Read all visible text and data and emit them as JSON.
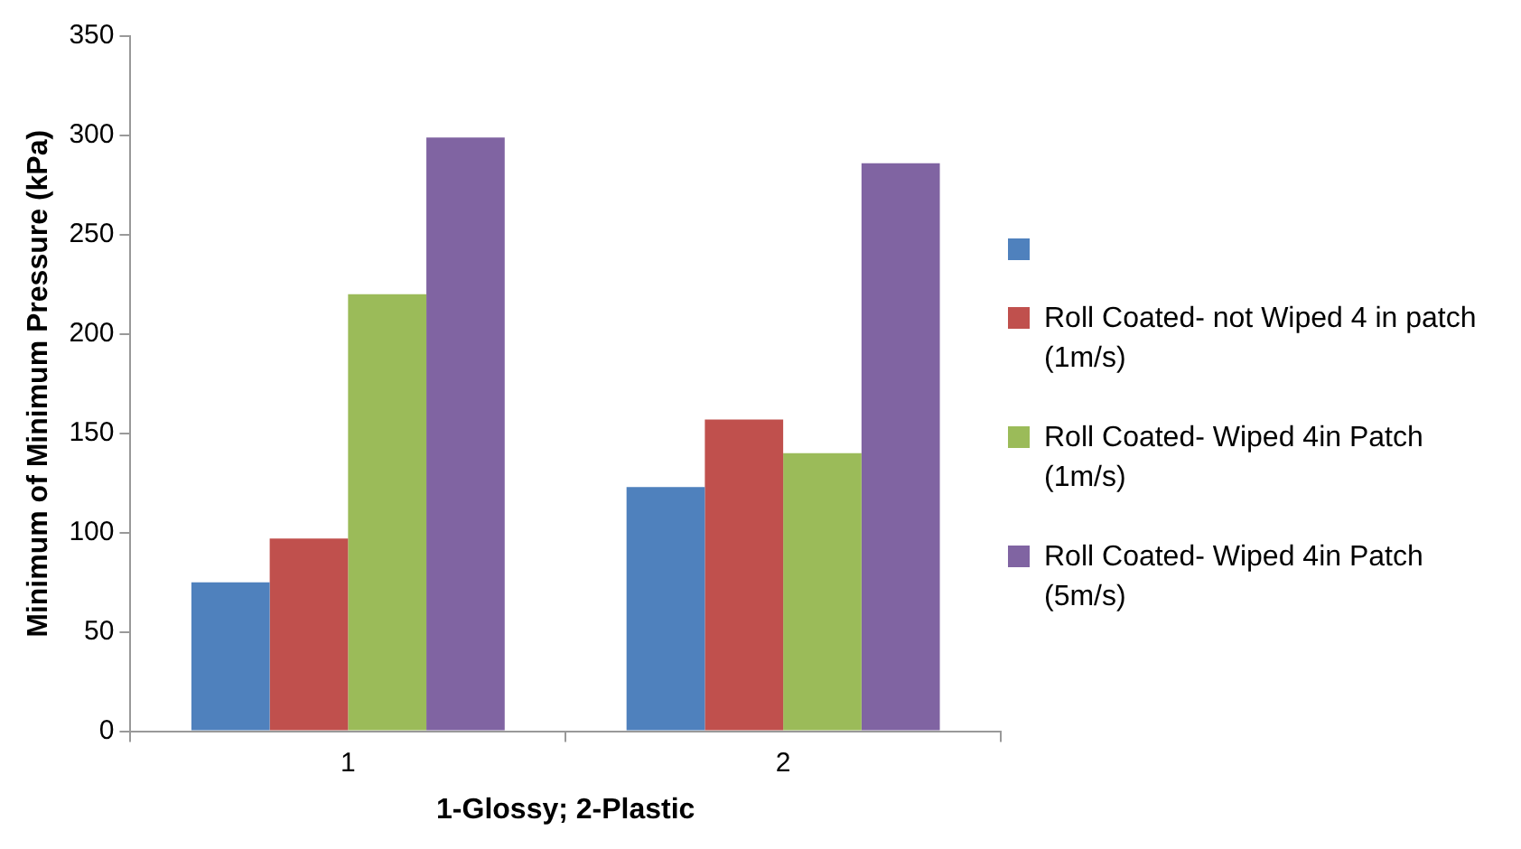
{
  "chart_data": {
    "type": "bar",
    "xlabel": "1-Glossy; 2-Plastic",
    "ylabel": "Minimum of Minimum Pressure (kPa)",
    "categories": [
      "1",
      "2"
    ],
    "series": [
      {
        "color": "#4f81bd",
        "values": [
          75,
          123
        ]
      },
      {
        "name": "Roll Coated- not Wiped 4 in patch (1m/s)",
        "color": "#c0504d",
        "values": [
          97,
          157
        ]
      },
      {
        "name": "Roll Coated- Wiped 4in Patch (1m/s)",
        "color": "#9bbb59",
        "values": [
          220,
          140
        ]
      },
      {
        "name": "Roll Coated- Wiped 4in Patch (5m/s)",
        "color": "#8064a2",
        "values": [
          299,
          286
        ]
      }
    ],
    "ylim": [
      0,
      350
    ],
    "yticks": [
      0,
      50,
      100,
      150,
      200,
      250,
      300,
      350
    ],
    "grid": false,
    "legend": "right"
  }
}
